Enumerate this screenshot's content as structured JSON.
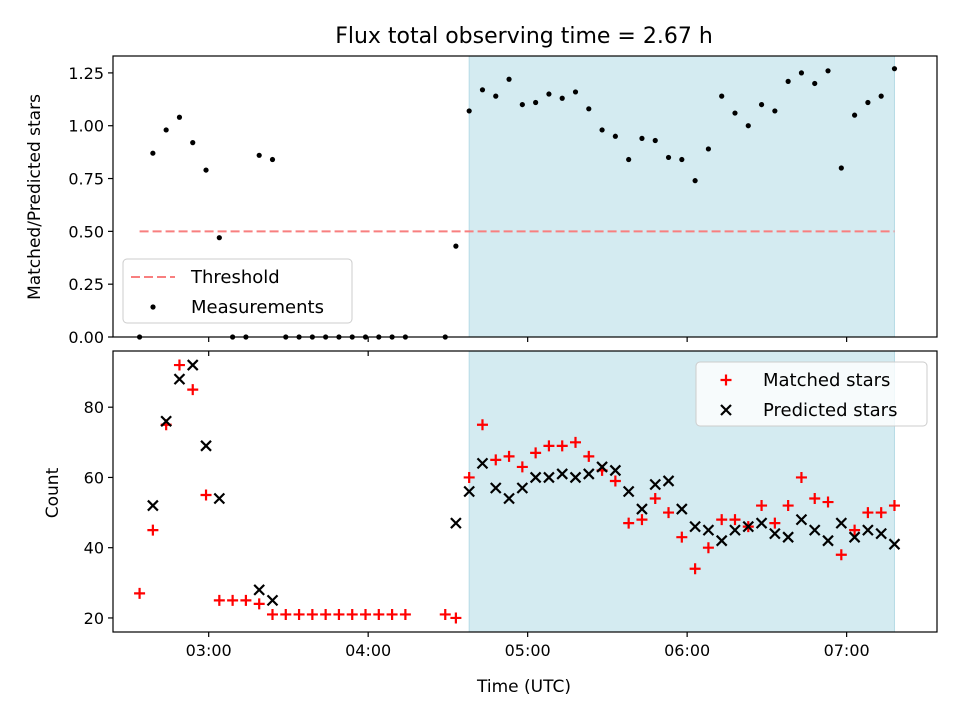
{
  "chart_data": [
    {
      "type": "scatter",
      "title": "Flux total observing time = 2.67 h",
      "ylabel": "Matched/Predicted stars",
      "xlabel": "",
      "xlim": [
        "02:24",
        "07:34"
      ],
      "ylim": [
        0,
        1.33
      ],
      "yticks": [
        "0.00",
        "0.25",
        "0.50",
        "0.75",
        "1.00",
        "1.25"
      ],
      "shaded_interval": {
        "start": "04:38",
        "end": "07:18",
        "color": "#d4ebf1"
      },
      "threshold": {
        "name": "Threshold",
        "value": 0.5,
        "start": "02:34",
        "end": "07:18",
        "color": "#f87f7f"
      },
      "legend": {
        "position": "lower-left",
        "entries": [
          "Threshold",
          "Measurements"
        ]
      },
      "series": [
        {
          "name": "Measurements",
          "color": "#000000",
          "points": [
            [
              "02:34",
              0.0
            ],
            [
              "02:39",
              0.87
            ],
            [
              "02:44",
              0.98
            ],
            [
              "02:49",
              1.04
            ],
            [
              "02:54",
              0.92
            ],
            [
              "02:59",
              0.79
            ],
            [
              "03:04",
              0.47
            ],
            [
              "03:09",
              0.0
            ],
            [
              "03:14",
              0.0
            ],
            [
              "03:19",
              0.86
            ],
            [
              "03:24",
              0.84
            ],
            [
              "03:29",
              0.0
            ],
            [
              "03:34",
              0.0
            ],
            [
              "03:39",
              0.0
            ],
            [
              "03:44",
              0.0
            ],
            [
              "03:49",
              0.0
            ],
            [
              "03:54",
              0.0
            ],
            [
              "03:59",
              0.0
            ],
            [
              "04:04",
              0.0
            ],
            [
              "04:09",
              0.0
            ],
            [
              "04:14",
              0.0
            ],
            [
              "04:29",
              0.0
            ],
            [
              "04:33",
              0.43
            ],
            [
              "04:38",
              1.07
            ],
            [
              "04:43",
              1.17
            ],
            [
              "04:48",
              1.14
            ],
            [
              "04:53",
              1.22
            ],
            [
              "04:58",
              1.1
            ],
            [
              "05:03",
              1.11
            ],
            [
              "05:08",
              1.15
            ],
            [
              "05:13",
              1.13
            ],
            [
              "05:18",
              1.16
            ],
            [
              "05:23",
              1.08
            ],
            [
              "05:28",
              0.98
            ],
            [
              "05:33",
              0.95
            ],
            [
              "05:38",
              0.84
            ],
            [
              "05:43",
              0.94
            ],
            [
              "05:48",
              0.93
            ],
            [
              "05:53",
              0.85
            ],
            [
              "05:58",
              0.84
            ],
            [
              "06:03",
              0.74
            ],
            [
              "06:08",
              0.89
            ],
            [
              "06:13",
              1.14
            ],
            [
              "06:18",
              1.06
            ],
            [
              "06:23",
              1.0
            ],
            [
              "06:28",
              1.1
            ],
            [
              "06:33",
              1.07
            ],
            [
              "06:38",
              1.21
            ],
            [
              "06:43",
              1.25
            ],
            [
              "06:48",
              1.2
            ],
            [
              "06:53",
              1.26
            ],
            [
              "06:58",
              0.8
            ],
            [
              "07:03",
              1.05
            ],
            [
              "07:08",
              1.11
            ],
            [
              "07:13",
              1.14
            ],
            [
              "07:18",
              1.27
            ]
          ]
        }
      ]
    },
    {
      "type": "scatter",
      "title": "",
      "ylabel": "Count",
      "xlabel": "Time (UTC)",
      "xlim": [
        "02:24",
        "07:34"
      ],
      "ylim": [
        16,
        96
      ],
      "yticks": [
        "20",
        "40",
        "60",
        "80"
      ],
      "xticks": [
        "03:00",
        "04:00",
        "05:00",
        "06:00",
        "07:00"
      ],
      "shaded_interval": {
        "start": "04:38",
        "end": "07:18",
        "color": "#d4ebf1"
      },
      "legend": {
        "position": "upper-right",
        "entries": [
          "Matched stars",
          "Predicted stars"
        ]
      },
      "series": [
        {
          "name": "Matched stars",
          "marker": "+",
          "color": "#ff0000",
          "points": [
            [
              "02:34",
              27
            ],
            [
              "02:39",
              45
            ],
            [
              "02:44",
              75
            ],
            [
              "02:49",
              92
            ],
            [
              "02:54",
              85
            ],
            [
              "02:59",
              55
            ],
            [
              "03:04",
              25
            ],
            [
              "03:09",
              25
            ],
            [
              "03:14",
              25
            ],
            [
              "03:19",
              24
            ],
            [
              "03:24",
              21
            ],
            [
              "03:29",
              21
            ],
            [
              "03:34",
              21
            ],
            [
              "03:39",
              21
            ],
            [
              "03:44",
              21
            ],
            [
              "03:49",
              21
            ],
            [
              "03:54",
              21
            ],
            [
              "03:59",
              21
            ],
            [
              "04:04",
              21
            ],
            [
              "04:09",
              21
            ],
            [
              "04:14",
              21
            ],
            [
              "04:29",
              21
            ],
            [
              "04:33",
              20
            ],
            [
              "04:38",
              60
            ],
            [
              "04:43",
              75
            ],
            [
              "04:48",
              65
            ],
            [
              "04:53",
              66
            ],
            [
              "04:58",
              63
            ],
            [
              "05:03",
              67
            ],
            [
              "05:08",
              69
            ],
            [
              "05:13",
              69
            ],
            [
              "05:18",
              70
            ],
            [
              "05:23",
              66
            ],
            [
              "05:28",
              62
            ],
            [
              "05:33",
              59
            ],
            [
              "05:38",
              47
            ],
            [
              "05:43",
              48
            ],
            [
              "05:48",
              54
            ],
            [
              "05:53",
              50
            ],
            [
              "05:58",
              43
            ],
            [
              "06:03",
              34
            ],
            [
              "06:08",
              40
            ],
            [
              "06:13",
              48
            ],
            [
              "06:18",
              48
            ],
            [
              "06:23",
              46
            ],
            [
              "06:28",
              52
            ],
            [
              "06:33",
              47
            ],
            [
              "06:38",
              52
            ],
            [
              "06:43",
              60
            ],
            [
              "06:48",
              54
            ],
            [
              "06:53",
              53
            ],
            [
              "06:58",
              38
            ],
            [
              "07:03",
              45
            ],
            [
              "07:08",
              50
            ],
            [
              "07:13",
              50
            ],
            [
              "07:18",
              52
            ]
          ]
        },
        {
          "name": "Predicted stars",
          "marker": "x",
          "color": "#000000",
          "points": [
            [
              "02:39",
              52
            ],
            [
              "02:44",
              76
            ],
            [
              "02:49",
              88
            ],
            [
              "02:54",
              92
            ],
            [
              "02:59",
              69
            ],
            [
              "03:04",
              54
            ],
            [
              "03:19",
              28
            ],
            [
              "03:24",
              25
            ],
            [
              "04:33",
              47
            ],
            [
              "04:38",
              56
            ],
            [
              "04:43",
              64
            ],
            [
              "04:48",
              57
            ],
            [
              "04:53",
              54
            ],
            [
              "04:58",
              57
            ],
            [
              "05:03",
              60
            ],
            [
              "05:08",
              60
            ],
            [
              "05:13",
              61
            ],
            [
              "05:18",
              60
            ],
            [
              "05:23",
              61
            ],
            [
              "05:28",
              63
            ],
            [
              "05:33",
              62
            ],
            [
              "05:38",
              56
            ],
            [
              "05:43",
              51
            ],
            [
              "05:48",
              58
            ],
            [
              "05:53",
              59
            ],
            [
              "05:58",
              51
            ],
            [
              "06:03",
              46
            ],
            [
              "06:08",
              45
            ],
            [
              "06:13",
              42
            ],
            [
              "06:18",
              45
            ],
            [
              "06:23",
              46
            ],
            [
              "06:28",
              47
            ],
            [
              "06:33",
              44
            ],
            [
              "06:38",
              43
            ],
            [
              "06:43",
              48
            ],
            [
              "06:48",
              45
            ],
            [
              "06:53",
              42
            ],
            [
              "06:58",
              47
            ],
            [
              "07:03",
              43
            ],
            [
              "07:08",
              45
            ],
            [
              "07:13",
              44
            ],
            [
              "07:18",
              41
            ]
          ]
        }
      ]
    }
  ]
}
